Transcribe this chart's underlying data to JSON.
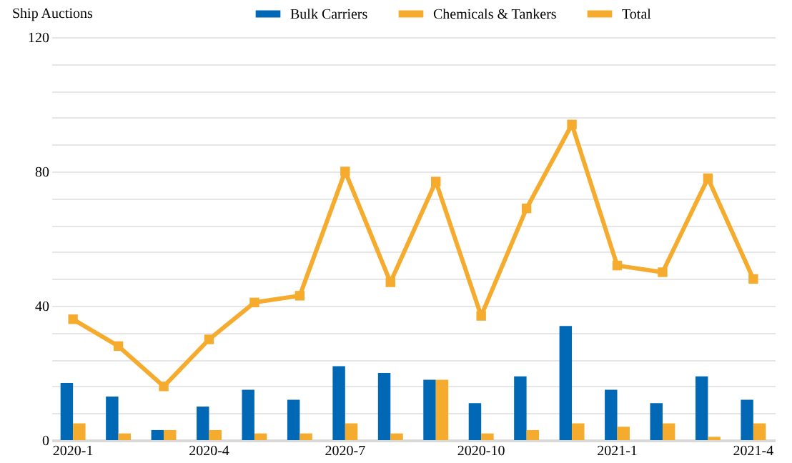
{
  "chart_data": {
    "type": "bar",
    "ylabel": "Ship  Auctions",
    "categories": [
      "2020-1",
      null,
      null,
      "2020-4",
      null,
      null,
      "2020-7",
      null,
      null,
      "2020-10",
      null,
      null,
      "2021-1",
      null,
      null,
      "2021-4"
    ],
    "series": [
      {
        "name": "Bulk Carriers",
        "color": "#0068b5",
        "values": [
          17,
          13,
          3,
          10,
          15,
          12,
          22,
          20,
          18,
          11,
          19,
          34,
          15,
          11,
          19,
          12
        ]
      },
      {
        "name": "Chemicals & Tankers",
        "color": "#f5ac2e",
        "values": [
          5,
          2,
          3,
          3,
          2,
          2,
          5,
          2,
          18,
          2,
          3,
          5,
          4,
          5,
          1,
          5
        ]
      },
      {
        "name": "Total",
        "type": "line",
        "color": "#f5ac2e",
        "marker": "square",
        "values": [
          36,
          28,
          16,
          30,
          41,
          43,
          80,
          47,
          77,
          37,
          69,
          94,
          52,
          50,
          78,
          48
        ]
      }
    ],
    "ylim": [
      0,
      120
    ],
    "yticks": [
      0,
      {
        "value": 8,
        "label": null
      },
      {
        "value": 16,
        "label": null
      },
      {
        "value": 24,
        "label": null
      },
      {
        "value": 32,
        "label": null
      },
      40,
      {
        "value": 48,
        "label": null
      },
      {
        "value": 56,
        "label": null
      },
      {
        "value": 64,
        "label": null
      },
      {
        "value": 72,
        "label": null
      },
      80,
      {
        "value": 88,
        "label": null
      },
      {
        "value": 96,
        "label": null
      },
      {
        "value": 104,
        "label": null
      },
      {
        "value": 112,
        "label": null
      },
      120
    ],
    "grid": "y",
    "legend": "top"
  }
}
